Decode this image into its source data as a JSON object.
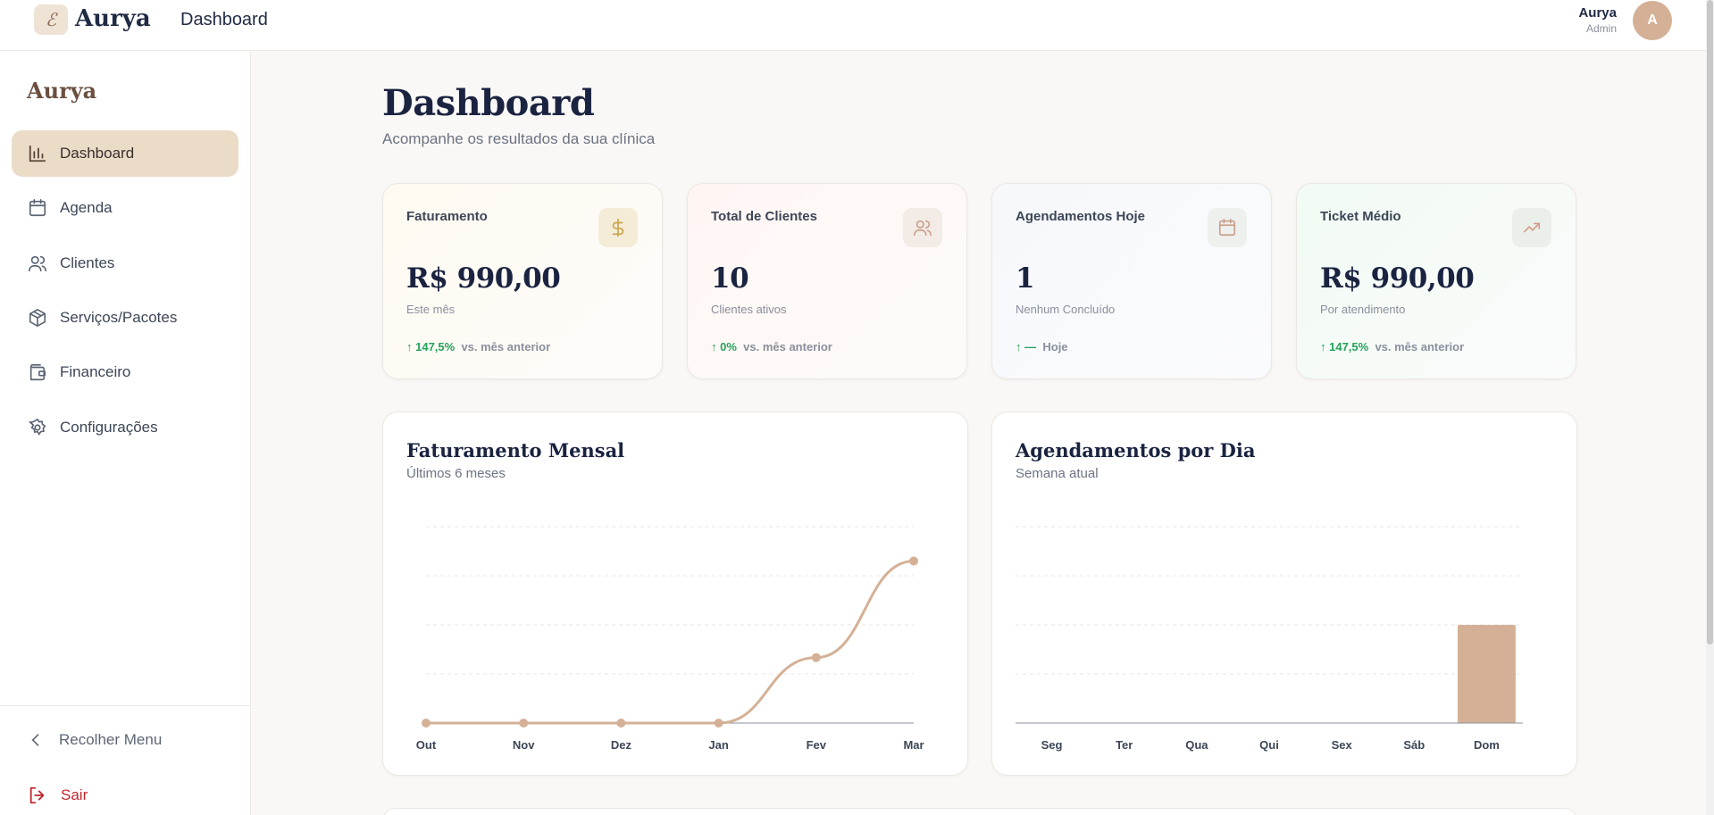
{
  "topbar": {
    "brand": "Aurya",
    "title": "Dashboard",
    "user_name": "Aurya",
    "user_role": "Admin",
    "avatar_initial": "A"
  },
  "sidebar": {
    "brand": "Aurya",
    "items": [
      {
        "label": "Dashboard",
        "icon": "bar-chart-icon",
        "active": true
      },
      {
        "label": "Agenda",
        "icon": "calendar-icon"
      },
      {
        "label": "Clientes",
        "icon": "users-icon"
      },
      {
        "label": "Serviços/Pacotes",
        "icon": "package-icon"
      },
      {
        "label": "Financeiro",
        "icon": "wallet-icon"
      },
      {
        "label": "Configurações",
        "icon": "gear-icon"
      }
    ],
    "collapse_label": "Recolher Menu",
    "logout_label": "Sair"
  },
  "page": {
    "title": "Dashboard",
    "subtitle": "Acompanhe os resultados da sua clínica"
  },
  "cards": [
    {
      "label": "Faturamento",
      "value": "R$ 990,00",
      "note": "Este mês",
      "trend_value": "↑ 147,5%",
      "trend_text": "vs. mês anterior",
      "icon": "dollar-icon",
      "color": "#c9a44a"
    },
    {
      "label": "Total de Clientes",
      "value": "10",
      "note": "Clientes ativos",
      "trend_value": "↑ 0%",
      "trend_text": "vs. mês anterior",
      "icon": "users-icon",
      "color": "#c9a08a"
    },
    {
      "label": "Agendamentos Hoje",
      "value": "1",
      "note": "Nenhum Concluído",
      "trend_value": "↑ —",
      "trend_text": "Hoje",
      "icon": "calendar-icon",
      "color": "#c9a08a"
    },
    {
      "label": "Ticket Médio",
      "value": "R$ 990,00",
      "note": "Por atendimento",
      "trend_value": "↑ 147,5%",
      "trend_text": "vs. mês anterior",
      "icon": "trending-up-icon",
      "color": "#d49a8a"
    }
  ],
  "panels": {
    "revenue": {
      "title": "Faturamento Mensal",
      "subtitle": "Últimos 6 meses"
    },
    "appointments": {
      "title": "Agendamentos por Dia",
      "subtitle": "Semana atual"
    }
  },
  "chart_data": [
    {
      "type": "line",
      "title": "Faturamento Mensal",
      "categories": [
        "Out",
        "Nov",
        "Dez",
        "Jan",
        "Fev",
        "Mar"
      ],
      "values": [
        0,
        0,
        0,
        0,
        400,
        990
      ],
      "ylim": [
        0,
        1200
      ],
      "grid": true,
      "color": "#d4b196"
    },
    {
      "type": "bar",
      "title": "Agendamentos por Dia",
      "categories": [
        "Seg",
        "Ter",
        "Qua",
        "Qui",
        "Sex",
        "Sáb",
        "Dom"
      ],
      "values": [
        0,
        0,
        0,
        0,
        0,
        0,
        1
      ],
      "ylim": [
        0,
        2
      ],
      "grid": true,
      "color": "#d4b196"
    }
  ]
}
